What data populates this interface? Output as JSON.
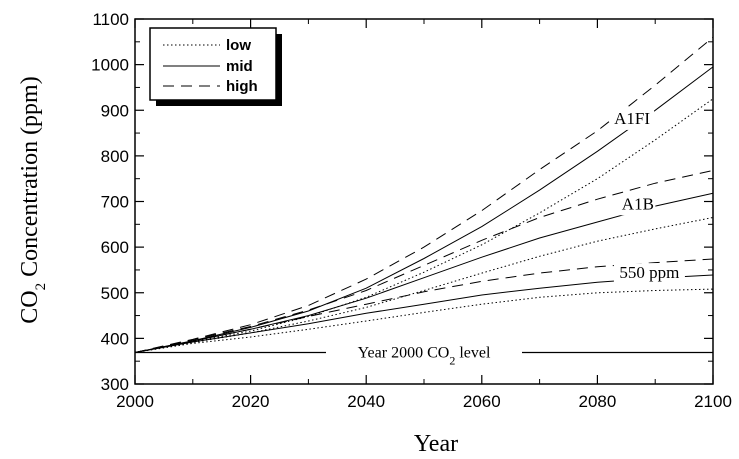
{
  "chart_data": {
    "type": "line",
    "xlabel": "Year",
    "ylabel_main": "CO",
    "ylabel_sub": "2",
    "ylabel_rest": " Concentration (ppm)",
    "xlim": [
      2000,
      2100
    ],
    "ylim": [
      300,
      1100
    ],
    "xticks": [
      2000,
      2020,
      2040,
      2060,
      2080,
      2100
    ],
    "yticks": [
      300,
      400,
      500,
      600,
      700,
      800,
      900,
      1000,
      1100
    ],
    "grid": false,
    "legend_position": "top-left",
    "legend": [
      {
        "label": "low",
        "style": "dotted"
      },
      {
        "label": "mid",
        "style": "solid"
      },
      {
        "label": "high",
        "style": "dashed"
      }
    ],
    "scenarios": [
      {
        "name": "A1FI",
        "label_at": [
          2086,
          870
        ],
        "series": [
          {
            "style": "high",
            "x": [
              2000,
              2010,
              2020,
              2030,
              2040,
              2050,
              2060,
              2070,
              2080,
              2090,
              2100
            ],
            "y": [
              369,
              398,
              430,
              472,
              530,
              600,
              680,
              770,
              855,
              955,
              1060
            ]
          },
          {
            "style": "mid",
            "x": [
              2000,
              2010,
              2020,
              2030,
              2040,
              2050,
              2060,
              2070,
              2080,
              2090,
              2100
            ],
            "y": [
              369,
              395,
              424,
              460,
              510,
              575,
              645,
              725,
              810,
              900,
              995
            ]
          },
          {
            "style": "low",
            "x": [
              2000,
              2010,
              2020,
              2030,
              2040,
              2050,
              2060,
              2070,
              2080,
              2090,
              2100
            ],
            "y": [
              369,
              393,
              416,
              448,
              490,
              545,
              605,
              675,
              750,
              835,
              925
            ]
          }
        ]
      },
      {
        "name": "A1B",
        "label_at": [
          2087,
          683
        ],
        "series": [
          {
            "style": "high",
            "x": [
              2000,
              2010,
              2020,
              2030,
              2040,
              2050,
              2060,
              2070,
              2080,
              2090,
              2100
            ],
            "y": [
              369,
              397,
              426,
              462,
              505,
              560,
              615,
              665,
              705,
              740,
              768
            ]
          },
          {
            "style": "mid",
            "x": [
              2000,
              2010,
              2020,
              2030,
              2040,
              2050,
              2060,
              2070,
              2080,
              2090,
              2100
            ],
            "y": [
              369,
              394,
              420,
              450,
              488,
              533,
              578,
              620,
              655,
              690,
              718
            ]
          },
          {
            "style": "low",
            "x": [
              2000,
              2010,
              2020,
              2030,
              2040,
              2050,
              2060,
              2070,
              2080,
              2090,
              2100
            ],
            "y": [
              369,
              391,
              412,
              438,
              468,
              505,
              543,
              580,
              613,
              640,
              665
            ]
          }
        ]
      },
      {
        "name": "550 ppm",
        "label_at": [
          2089,
          532
        ],
        "series": [
          {
            "style": "high",
            "x": [
              2000,
              2010,
              2020,
              2030,
              2040,
              2050,
              2060,
              2070,
              2080,
              2090,
              2100
            ],
            "y": [
              369,
              395,
              420,
              448,
              475,
              502,
              525,
              543,
              557,
              566,
              574
            ]
          },
          {
            "style": "mid",
            "x": [
              2000,
              2010,
              2020,
              2030,
              2040,
              2050,
              2060,
              2070,
              2080,
              2090,
              2100
            ],
            "y": [
              369,
              392,
              412,
              432,
              455,
              475,
              495,
              510,
              523,
              532,
              539
            ]
          },
          {
            "style": "low",
            "x": [
              2000,
              2010,
              2020,
              2030,
              2040,
              2050,
              2060,
              2070,
              2080,
              2090,
              2100
            ],
            "y": [
              369,
              389,
              403,
              420,
              438,
              457,
              475,
              490,
              500,
              505,
              508
            ]
          }
        ]
      }
    ],
    "reference_line": {
      "y": 369,
      "label_pre": "Year 2000 CO",
      "label_sub": "2",
      "label_post": " level",
      "label_at_x": 2050
    }
  }
}
